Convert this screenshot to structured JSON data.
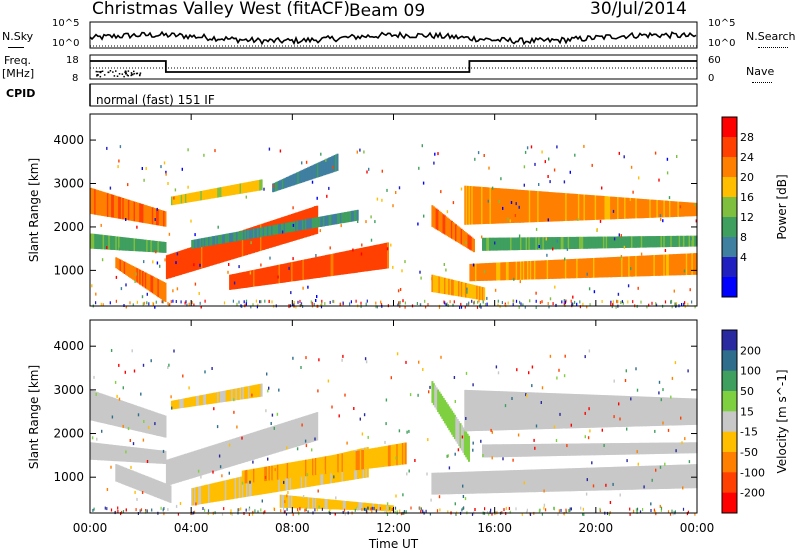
{
  "header": {
    "station": "Christmas Valley West (fitACF)",
    "beam": "Beam 09",
    "date": "30/Jul/2014"
  },
  "status_panel": {
    "left_label": "N.Sky",
    "left_ticks": [
      "10^5",
      "10^0"
    ],
    "right_label": "N.Search",
    "right_ticks": [
      "10^5",
      "10^0"
    ]
  },
  "freq_panel": {
    "left_label_line1": "Freq.",
    "left_label_line2": "[MHz]",
    "left_ticks": [
      "18",
      "8"
    ],
    "right_label": "Nave",
    "right_ticks": [
      "60",
      "0"
    ]
  },
  "cpid": {
    "label": "CPID",
    "value": "normal (fast) 151 IF"
  },
  "power_panel": {
    "ylabel": "Slant Range [km]",
    "yticks": [
      "4000",
      "3000",
      "2000",
      "1000"
    ],
    "colorbar_label": "Power [dB]",
    "colorbar_ticks": [
      "28",
      "24",
      "20",
      "16",
      "12",
      "8",
      "4"
    ],
    "colorbar_colors": [
      "#ff0000",
      "#ff4000",
      "#ff8000",
      "#ffbf00",
      "#7fbf3f",
      "#3f9f5f",
      "#3f7fa0",
      "#2020c0",
      "#0000ff"
    ]
  },
  "velocity_panel": {
    "ylabel": "Slant Range [km]",
    "yticks": [
      "4000",
      "3000",
      "2000",
      "1000"
    ],
    "colorbar_label": "Velocity [m s^-1]",
    "colorbar_ticks": [
      "200",
      "100",
      "50",
      "15",
      "-15",
      "-50",
      "-100",
      "-200"
    ],
    "colorbar_colors": [
      "#2a2aa0",
      "#2e6e8c",
      "#3f9f5f",
      "#7fd040",
      "#c8c8c8",
      "#ffbf00",
      "#ff8000",
      "#ff4000",
      "#ff0000"
    ]
  },
  "x_axis": {
    "ticks": [
      "00:00",
      "04:00",
      "08:00",
      "12:00",
      "16:00",
      "20:00",
      "00:00"
    ],
    "label": "Time UT"
  },
  "chart_data": [
    {
      "type": "heatmap",
      "quantity": "power_dB",
      "x_range_hours": [
        0,
        24
      ],
      "y_range_km": [
        180,
        4600
      ],
      "color_range": [
        0,
        30
      ],
      "bands": [
        {
          "t": [
            0.0,
            3.0
          ],
          "r0": [
            2900,
            2350
          ],
          "r1": [
            2300,
            2000
          ],
          "v": 24
        },
        {
          "t": [
            0.0,
            3.0
          ],
          "r0": [
            1850,
            1650
          ],
          "r1": [
            1500,
            1400
          ],
          "v": 12
        },
        {
          "t": [
            1.0,
            3.0
          ],
          "r0": [
            1300,
            700
          ],
          "r1": [
            1050,
            250
          ],
          "v": 24
        },
        {
          "t": [
            3.0,
            9.0
          ],
          "r0": [
            1350,
            2500
          ],
          "r1": [
            800,
            1850
          ],
          "v": 26
        },
        {
          "t": [
            3.2,
            6.8
          ],
          "r0": [
            2700,
            3100
          ],
          "r1": [
            2500,
            2850
          ],
          "v": 18
        },
        {
          "t": [
            4.0,
            10.6
          ],
          "r0": [
            1700,
            2400
          ],
          "r1": [
            1500,
            2150
          ],
          "v": 10
        },
        {
          "t": [
            5.5,
            11.8
          ],
          "r0": [
            900,
            1650
          ],
          "r1": [
            550,
            1050
          ],
          "v": 26
        },
        {
          "t": [
            7.2,
            9.8
          ],
          "r0": [
            3000,
            3700
          ],
          "r1": [
            2800,
            3300
          ],
          "v": 8
        },
        {
          "t": [
            13.5,
            15.2
          ],
          "r0": [
            2500,
            1700
          ],
          "r1": [
            2000,
            1400
          ],
          "v": 24
        },
        {
          "t": [
            13.5,
            15.6
          ],
          "r0": [
            900,
            600
          ],
          "r1": [
            500,
            300
          ],
          "v": 20
        },
        {
          "t": [
            14.8,
            24.0
          ],
          "r0": [
            2950,
            2550
          ],
          "r1": [
            2050,
            2250
          ],
          "v": 22
        },
        {
          "t": [
            15.0,
            24.0
          ],
          "r0": [
            1150,
            1400
          ],
          "r1": [
            750,
            900
          ],
          "v": 22
        },
        {
          "t": [
            15.5,
            24.0
          ],
          "r0": [
            1750,
            1800
          ],
          "r1": [
            1450,
            1550
          ],
          "v": 12
        }
      ]
    },
    {
      "type": "heatmap",
      "quantity": "velocity_m_s",
      "x_range_hours": [
        0,
        24
      ],
      "y_range_km": [
        180,
        4600
      ],
      "color_range": [
        -200,
        200
      ],
      "bands": [
        {
          "t": [
            0.0,
            3.0
          ],
          "r0": [
            3000,
            2400
          ],
          "r1": [
            2300,
            1900
          ],
          "v": 0
        },
        {
          "t": [
            0.0,
            3.0
          ],
          "r0": [
            1800,
            1600
          ],
          "r1": [
            1400,
            1300
          ],
          "v": 0
        },
        {
          "t": [
            1.0,
            3.2
          ],
          "r0": [
            1300,
            800
          ],
          "r1": [
            900,
            400
          ],
          "v": 0
        },
        {
          "t": [
            3.0,
            9.0
          ],
          "r0": [
            1400,
            2500
          ],
          "r1": [
            800,
            1850
          ],
          "v": 0
        },
        {
          "t": [
            3.2,
            6.8
          ],
          "r0": [
            2750,
            3150
          ],
          "r1": [
            2550,
            2850
          ],
          "v": -35
        },
        {
          "t": [
            4.0,
            11.0
          ],
          "r0": [
            750,
            1700
          ],
          "r1": [
            350,
            1000
          ],
          "v": -40
        },
        {
          "t": [
            6.0,
            12.5
          ],
          "r0": [
            1150,
            1800
          ],
          "r1": [
            850,
            1300
          ],
          "v": -60
        },
        {
          "t": [
            7.5,
            12.0
          ],
          "r0": [
            600,
            350
          ],
          "r1": [
            300,
            220
          ],
          "v": -40
        },
        {
          "t": [
            13.5,
            15.0
          ],
          "r0": [
            3200,
            1900
          ],
          "r1": [
            2700,
            1300
          ],
          "v": 30
        },
        {
          "t": [
            13.5,
            24.0
          ],
          "r0": [
            1100,
            1300
          ],
          "r1": [
            600,
            750
          ],
          "v": 0
        },
        {
          "t": [
            14.8,
            24.0
          ],
          "r0": [
            3000,
            2800
          ],
          "r1": [
            2050,
            2200
          ],
          "v": 0
        },
        {
          "t": [
            15.5,
            24.0
          ],
          "r0": [
            1750,
            1800
          ],
          "r1": [
            1450,
            1550
          ],
          "v": 0
        }
      ]
    }
  ]
}
